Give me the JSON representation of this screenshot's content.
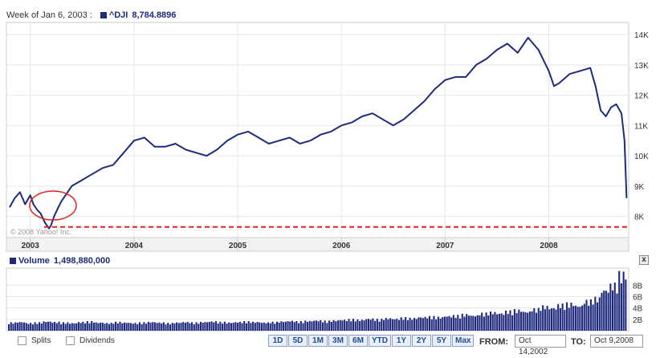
{
  "header": {
    "week_label": "Week of Jan 6, 2003 :",
    "symbol": "^DJI",
    "value": "8,784.8896"
  },
  "volume_header": {
    "label": "Volume",
    "value": "1,498,880,000"
  },
  "close_label": "x",
  "copyright": "© 2008 Yahoo! Inc.",
  "colors": {
    "line": "#1f2a7c",
    "support": "#e8211b",
    "annotation": "#d9261c",
    "grid": "#e6e6e6"
  },
  "chart_data": [
    {
      "type": "line",
      "title": "",
      "series": [
        {
          "name": "^DJI",
          "x": [
            2002.8,
            2002.85,
            2002.9,
            2002.95,
            2003.0,
            2003.03,
            2003.07,
            2003.1,
            2003.14,
            2003.18,
            2003.2,
            2003.23,
            2003.27,
            2003.3,
            2003.4,
            2003.5,
            2003.6,
            2003.7,
            2003.8,
            2003.9,
            2004.0,
            2004.1,
            2004.2,
            2004.3,
            2004.4,
            2004.5,
            2004.6,
            2004.7,
            2004.8,
            2004.9,
            2005.0,
            2005.1,
            2005.2,
            2005.3,
            2005.4,
            2005.5,
            2005.6,
            2005.7,
            2005.8,
            2005.9,
            2006.0,
            2006.1,
            2006.2,
            2006.3,
            2006.4,
            2006.5,
            2006.6,
            2006.7,
            2006.8,
            2006.9,
            2007.0,
            2007.1,
            2007.2,
            2007.3,
            2007.4,
            2007.5,
            2007.6,
            2007.7,
            2007.8,
            2007.9,
            2008.0,
            2008.05,
            2008.1,
            2008.2,
            2008.3,
            2008.4,
            2008.45,
            2008.5,
            2008.55,
            2008.6,
            2008.65,
            2008.7,
            2008.73,
            2008.75
          ],
          "values": [
            8300,
            8600,
            8800,
            8400,
            8700,
            8400,
            8200,
            8100,
            7800,
            7600,
            7700,
            8000,
            8300,
            8500,
            9000,
            9200,
            9400,
            9600,
            9700,
            10100,
            10500,
            10600,
            10300,
            10300,
            10400,
            10200,
            10100,
            10000,
            10200,
            10500,
            10700,
            10800,
            10600,
            10400,
            10500,
            10600,
            10400,
            10500,
            10700,
            10800,
            11000,
            11100,
            11300,
            11400,
            11200,
            11000,
            11200,
            11500,
            11800,
            12200,
            12500,
            12600,
            12600,
            13000,
            13200,
            13500,
            13700,
            13400,
            13900,
            13500,
            12800,
            12300,
            12400,
            12700,
            12800,
            12900,
            12300,
            11500,
            11300,
            11600,
            11700,
            11400,
            10500,
            8600
          ]
        }
      ],
      "x_tick_labels": [
        "2003",
        "2004",
        "2005",
        "2006",
        "2007",
        "2008"
      ],
      "x_ticks": [
        2003,
        2004,
        2005,
        2006,
        2007,
        2008
      ],
      "y_tick_labels": [
        "8K",
        "9K",
        "10K",
        "11K",
        "12K",
        "13K",
        "14K"
      ],
      "y_ticks": [
        8000,
        9000,
        10000,
        11000,
        12000,
        13000,
        14000
      ],
      "xlim": [
        2002.77,
        2008.77
      ],
      "ylim": [
        7300,
        14400
      ],
      "support_line": 7650,
      "grid": true,
      "legend": "top-left"
    },
    {
      "type": "bar",
      "title": "",
      "series": [
        {
          "name": "Volume",
          "values": [
            1.5,
            1.6,
            1.4,
            1.5,
            1.7,
            1.6,
            1.5,
            1.4,
            1.6,
            1.7,
            1.5,
            1.4,
            1.6,
            1.5,
            1.4,
            1.5,
            1.6,
            1.5,
            1.4,
            1.5,
            1.6,
            1.5,
            1.6,
            1.7,
            1.6,
            1.5,
            1.6,
            1.7,
            1.6,
            1.5,
            1.6,
            1.7,
            1.8,
            1.7,
            1.8,
            1.9,
            1.8,
            1.9,
            2.0,
            2.1,
            2.0,
            2.2,
            2.1,
            2.3,
            2.2,
            2.4,
            2.3,
            2.5,
            2.6,
            2.5,
            2.7,
            2.8,
            3.0,
            2.8,
            3.2,
            3.4,
            3.2,
            3.6,
            3.8,
            3.5,
            4.0,
            4.5,
            4.2,
            4.8,
            5.0,
            4.6,
            5.5,
            6.0,
            7.5,
            8.5,
            10.5
          ]
        }
      ],
      "y_tick_labels": [
        "2B",
        "4B",
        "6B",
        "8B"
      ],
      "y_ticks": [
        2,
        4,
        6,
        8
      ],
      "ylim": [
        0,
        11
      ],
      "legend": "top-left"
    }
  ],
  "footer": {
    "splits_label": "Splits",
    "dividends_label": "Dividends",
    "range_buttons": [
      "1D",
      "5D",
      "1M",
      "3M",
      "6M",
      "YTD",
      "1Y",
      "2Y",
      "5Y",
      "Max"
    ],
    "from_label": "FROM:",
    "from_date": "Oct 14,2002",
    "to_label": "TO:",
    "to_date": "Oct 9,2008"
  }
}
